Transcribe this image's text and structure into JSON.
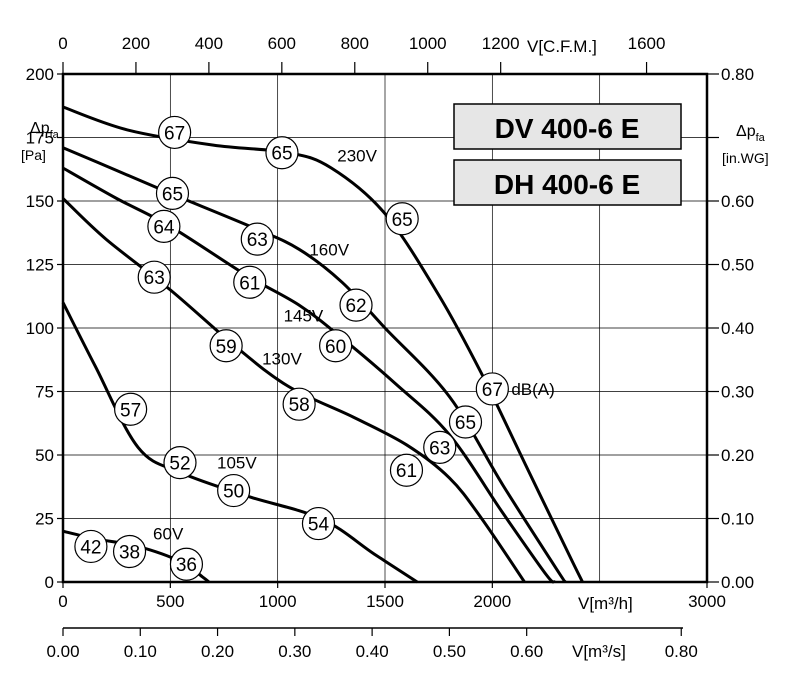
{
  "chart_data": {
    "type": "line",
    "title_lines": [
      "DV 400-6 E",
      "DH 400-6 E"
    ],
    "x_axis_bottom": {
      "unit_label": "V[m³/h]",
      "range": [
        0,
        3000
      ],
      "ticks": [
        0,
        500,
        1000,
        1500,
        2000,
        3000
      ],
      "tick_labels": [
        "0",
        "500",
        "1000",
        "1500",
        "2000",
        "3000"
      ]
    },
    "x_axis_top": {
      "unit_label": "V[C.F.M.]",
      "range_cfm": [
        0,
        1765.7
      ],
      "ticks": [
        0,
        200,
        400,
        600,
        800,
        1000,
        1200,
        1600
      ],
      "tick_labels": [
        "0",
        "200",
        "400",
        "600",
        "800",
        "1000",
        "1200",
        "1600"
      ]
    },
    "x_axis_m3s": {
      "unit_label": "V[m³/s]",
      "ticks": [
        0,
        0.1,
        0.2,
        0.3,
        0.4,
        0.5,
        0.6,
        0.8
      ],
      "tick_labels": [
        "0.00",
        "0.10",
        "0.20",
        "0.30",
        "0.40",
        "0.50",
        "0.60",
        "0.80"
      ]
    },
    "y_axis_left": {
      "label": "Δp",
      "label_sub": "fa",
      "unit": "[Pa]",
      "range": [
        0,
        200
      ],
      "ticks": [
        0,
        25,
        50,
        75,
        100,
        125,
        150,
        175,
        200
      ],
      "tick_labels": [
        "0",
        "25",
        "50",
        "75",
        "100",
        "125",
        "150",
        "175",
        "200"
      ]
    },
    "y_axis_right": {
      "label": "Δp",
      "label_sub": "fa",
      "unit": "[in.WG]",
      "range": [
        0,
        0.8
      ],
      "ticks": [
        0,
        0.1,
        0.2,
        0.3,
        0.4,
        0.5,
        0.6,
        0.7,
        0.8
      ],
      "tick_labels": [
        "0.00",
        "0.10",
        "0.20",
        "0.30",
        "0.40",
        "0.50",
        "0.60",
        "",
        "0.80"
      ]
    },
    "grid": true,
    "series": [
      {
        "name": "230V",
        "points": [
          [
            0,
            187
          ],
          [
            300,
            178
          ],
          [
            700,
            172
          ],
          [
            1050,
            169
          ],
          [
            1250,
            163
          ],
          [
            1500,
            145
          ],
          [
            1750,
            113
          ],
          [
            1950,
            82
          ],
          [
            2150,
            47
          ],
          [
            2350,
            12
          ],
          [
            2420,
            0
          ]
        ]
      },
      {
        "name": "160V",
        "points": [
          [
            0,
            171
          ],
          [
            250,
            162
          ],
          [
            500,
            153
          ],
          [
            900,
            139
          ],
          [
            1100,
            131
          ],
          [
            1300,
            118
          ],
          [
            1500,
            100
          ],
          [
            1800,
            73
          ],
          [
            2050,
            38
          ],
          [
            2300,
            5
          ],
          [
            2340,
            0
          ]
        ]
      },
      {
        "name": "145V",
        "points": [
          [
            0,
            163
          ],
          [
            250,
            151
          ],
          [
            500,
            140
          ],
          [
            850,
            121
          ],
          [
            1100,
            109
          ],
          [
            1300,
            96
          ],
          [
            1550,
            78
          ],
          [
            1800,
            58
          ],
          [
            2050,
            27
          ],
          [
            2250,
            3
          ],
          [
            2290,
            0
          ]
        ]
      },
      {
        "name": "130V",
        "points": [
          [
            0,
            151
          ],
          [
            200,
            135
          ],
          [
            500,
            115
          ],
          [
            800,
            93
          ],
          [
            1050,
            77
          ],
          [
            1350,
            65
          ],
          [
            1600,
            54
          ],
          [
            1800,
            41
          ],
          [
            1950,
            25
          ],
          [
            2150,
            0
          ]
        ]
      },
      {
        "name": "105V",
        "points": [
          [
            0,
            110
          ],
          [
            150,
            85
          ],
          [
            350,
            53
          ],
          [
            550,
            43
          ],
          [
            850,
            34
          ],
          [
            1200,
            25
          ],
          [
            1450,
            11
          ],
          [
            1650,
            0
          ]
        ]
      },
      {
        "name": "60V",
        "points": [
          [
            0,
            20
          ],
          [
            150,
            17
          ],
          [
            350,
            14
          ],
          [
            550,
            8
          ],
          [
            650,
            2
          ],
          [
            680,
            0
          ]
        ]
      }
    ],
    "series_labels": [
      {
        "text": "230V",
        "x": 1370,
        "y": 168
      },
      {
        "text": "160V",
        "x": 1240,
        "y": 131
      },
      {
        "text": "145V",
        "x": 1120,
        "y": 105
      },
      {
        "text": "130V",
        "x": 1020,
        "y": 88
      },
      {
        "text": "105V",
        "x": 810,
        "y": 47
      },
      {
        "text": "60V",
        "x": 490,
        "y": 19
      }
    ],
    "db_markers": [
      {
        "value": "67",
        "x": 520,
        "y": 177
      },
      {
        "value": "65",
        "x": 1020,
        "y": 169
      },
      {
        "value": "65",
        "x": 1580,
        "y": 143
      },
      {
        "value": "67",
        "x": 2000,
        "y": 76
      },
      {
        "value": "65",
        "x": 510,
        "y": 153
      },
      {
        "value": "63",
        "x": 905,
        "y": 135
      },
      {
        "value": "62",
        "x": 1365,
        "y": 109
      },
      {
        "value": "65",
        "x": 1875,
        "y": 63
      },
      {
        "value": "64",
        "x": 470,
        "y": 140
      },
      {
        "value": "61",
        "x": 870,
        "y": 118
      },
      {
        "value": "60",
        "x": 1270,
        "y": 93
      },
      {
        "value": "63",
        "x": 1755,
        "y": 53
      },
      {
        "value": "63",
        "x": 425,
        "y": 120
      },
      {
        "value": "59",
        "x": 760,
        "y": 93
      },
      {
        "value": "58",
        "x": 1100,
        "y": 70
      },
      {
        "value": "61",
        "x": 1600,
        "y": 44
      },
      {
        "value": "57",
        "x": 315,
        "y": 68
      },
      {
        "value": "52",
        "x": 545,
        "y": 47
      },
      {
        "value": "50",
        "x": 795,
        "y": 36
      },
      {
        "value": "54",
        "x": 1190,
        "y": 23
      },
      {
        "value": "42",
        "x": 130,
        "y": 14
      },
      {
        "value": "38",
        "x": 310,
        "y": 12
      },
      {
        "value": "36",
        "x": 575,
        "y": 7
      }
    ],
    "db_unit_label": "dB(A)"
  }
}
